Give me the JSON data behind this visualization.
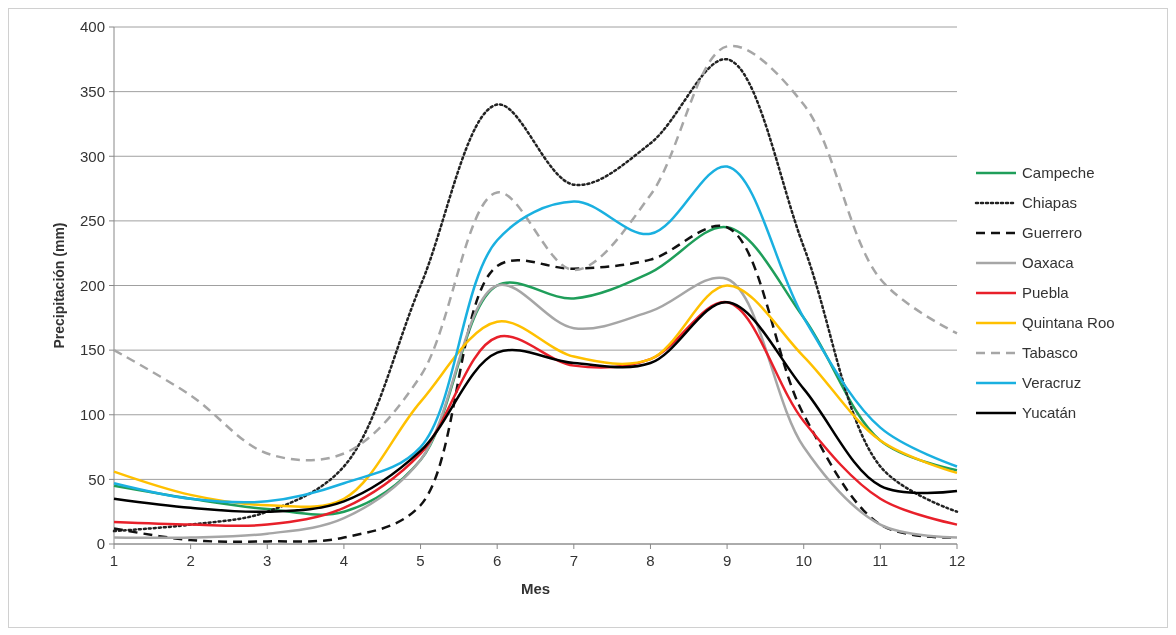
{
  "chart_data": {
    "type": "line",
    "xlabel": "Mes",
    "ylabel": "Precipitación (mm)",
    "x": [
      1,
      2,
      3,
      4,
      5,
      6,
      7,
      8,
      9,
      10,
      11,
      12
    ],
    "xlim": [
      1,
      12
    ],
    "xticks": [
      1,
      2,
      3,
      4,
      5,
      6,
      7,
      8,
      9,
      10,
      11,
      12
    ],
    "ylim": [
      0,
      400
    ],
    "yticks": [
      0,
      50,
      100,
      150,
      200,
      250,
      300,
      350,
      400
    ],
    "grid": "y",
    "legend": "right",
    "marker": "none",
    "series": [
      {
        "name": "Campeche",
        "color": "#1f9e5a",
        "line_style": "solid",
        "values": [
          45,
          35,
          27,
          25,
          65,
          200,
          190,
          210,
          245,
          175,
          80,
          57
        ]
      },
      {
        "name": "Chiapas",
        "color": "#222222",
        "line_style": "dotted",
        "values": [
          10,
          15,
          25,
          60,
          200,
          340,
          278,
          310,
          375,
          230,
          60,
          25
        ]
      },
      {
        "name": "Guerrero",
        "color": "#111111",
        "line_style": "dashed",
        "values": [
          12,
          3,
          2,
          5,
          30,
          215,
          213,
          220,
          245,
          100,
          15,
          5
        ]
      },
      {
        "name": "Oaxaca",
        "color": "#a6a6a6",
        "line_style": "solid",
        "values": [
          5,
          5,
          8,
          20,
          65,
          200,
          167,
          180,
          205,
          75,
          15,
          5
        ]
      },
      {
        "name": "Puebla",
        "color": "#e8202a",
        "line_style": "solid",
        "values": [
          17,
          15,
          15,
          28,
          70,
          160,
          138,
          143,
          187,
          95,
          35,
          15
        ]
      },
      {
        "name": "Quintana Roo",
        "color": "#ffc000",
        "line_style": "solid",
        "values": [
          56,
          38,
          30,
          35,
          110,
          172,
          145,
          143,
          200,
          145,
          80,
          55
        ]
      },
      {
        "name": "Tabasco",
        "color": "#a6a6a6",
        "line_style": "dashed",
        "values": [
          150,
          115,
          70,
          70,
          130,
          272,
          212,
          270,
          385,
          340,
          205,
          163
        ]
      },
      {
        "name": "Veracruz",
        "color": "#1ab0e0",
        "line_style": "solid",
        "values": [
          47,
          35,
          33,
          47,
          75,
          235,
          265,
          240,
          292,
          175,
          90,
          60
        ]
      },
      {
        "name": "Yucatán",
        "color": "#000000",
        "line_style": "solid",
        "values": [
          35,
          28,
          25,
          33,
          72,
          148,
          140,
          140,
          187,
          120,
          45,
          41
        ]
      }
    ]
  }
}
